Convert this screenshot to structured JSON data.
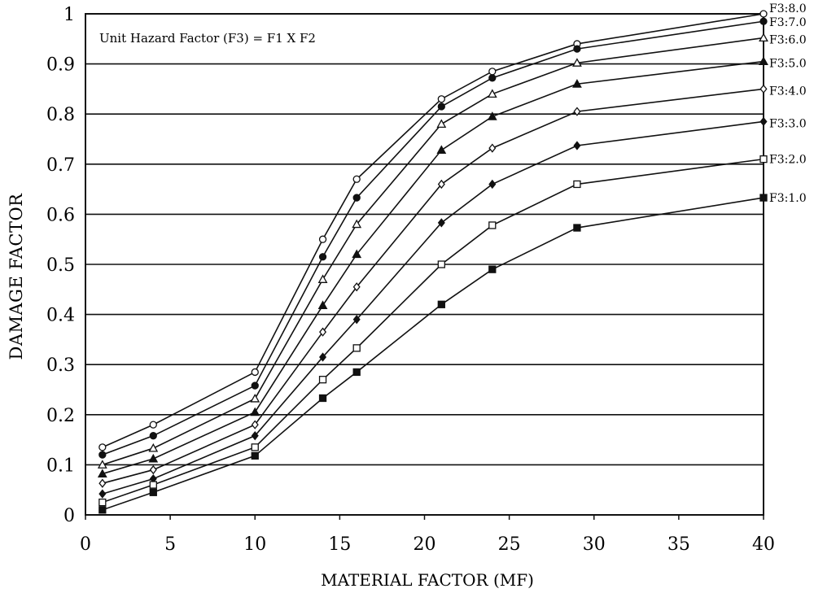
{
  "chart_data": {
    "type": "line",
    "xlabel": "MATERIAL FACTOR (MF)",
    "ylabel": "DAMAGE FACTOR",
    "annotation": "Unit Hazard Factor (F3) = F1 X F2",
    "xlim": [
      0,
      40
    ],
    "ylim": [
      0,
      1
    ],
    "xticks": [
      0,
      5,
      10,
      15,
      20,
      25,
      30,
      35,
      40
    ],
    "yticks": [
      0,
      0.1,
      0.2,
      0.3,
      0.4,
      0.5,
      0.6,
      0.7,
      0.8,
      0.9,
      1
    ],
    "ytick_labels": [
      "0",
      "0.1",
      "0.2",
      "0.3",
      "0.4",
      "0.5",
      "0.6",
      "0.7",
      "0.8",
      "0.9",
      "1"
    ],
    "grid": "horizontal",
    "line_color": "#111111",
    "series": [
      {
        "name": "F3:8.0",
        "marker": "circle-open",
        "x": [
          1,
          4,
          10,
          14,
          16,
          21,
          24,
          29,
          40
        ],
        "y": [
          0.135,
          0.18,
          0.285,
          0.55,
          0.67,
          0.83,
          0.885,
          0.94,
          1.0
        ]
      },
      {
        "name": "F3:7.0",
        "marker": "circle-filled",
        "x": [
          1,
          4,
          10,
          14,
          16,
          21,
          24,
          29,
          40
        ],
        "y": [
          0.12,
          0.158,
          0.258,
          0.515,
          0.633,
          0.815,
          0.872,
          0.93,
          0.985
        ]
      },
      {
        "name": "F3:6.0",
        "marker": "triangle-open",
        "x": [
          1,
          4,
          10,
          14,
          16,
          21,
          24,
          29,
          40
        ],
        "y": [
          0.1,
          0.133,
          0.232,
          0.47,
          0.58,
          0.78,
          0.84,
          0.902,
          0.952
        ]
      },
      {
        "name": "F3:5.0",
        "marker": "triangle-filled",
        "x": [
          1,
          4,
          10,
          14,
          16,
          21,
          24,
          29,
          40
        ],
        "y": [
          0.082,
          0.112,
          0.205,
          0.418,
          0.52,
          0.728,
          0.795,
          0.86,
          0.905
        ]
      },
      {
        "name": "F3:4.0",
        "marker": "diamond-open",
        "x": [
          1,
          4,
          10,
          14,
          16,
          21,
          24,
          29,
          40
        ],
        "y": [
          0.063,
          0.09,
          0.18,
          0.365,
          0.455,
          0.66,
          0.732,
          0.805,
          0.85
        ]
      },
      {
        "name": "F3:3.0",
        "marker": "diamond-filled",
        "x": [
          1,
          4,
          10,
          14,
          16,
          21,
          24,
          29,
          40
        ],
        "y": [
          0.042,
          0.072,
          0.158,
          0.315,
          0.39,
          0.583,
          0.66,
          0.737,
          0.785
        ]
      },
      {
        "name": "F3:2.0",
        "marker": "square-open",
        "x": [
          1,
          4,
          10,
          14,
          16,
          21,
          24,
          29,
          40
        ],
        "y": [
          0.025,
          0.06,
          0.135,
          0.27,
          0.333,
          0.5,
          0.578,
          0.66,
          0.71
        ]
      },
      {
        "name": "F3:1.0",
        "marker": "square-filled",
        "x": [
          1,
          4,
          10,
          14,
          16,
          21,
          24,
          29,
          40
        ],
        "y": [
          0.01,
          0.045,
          0.118,
          0.233,
          0.285,
          0.42,
          0.49,
          0.573,
          0.633
        ]
      }
    ]
  }
}
